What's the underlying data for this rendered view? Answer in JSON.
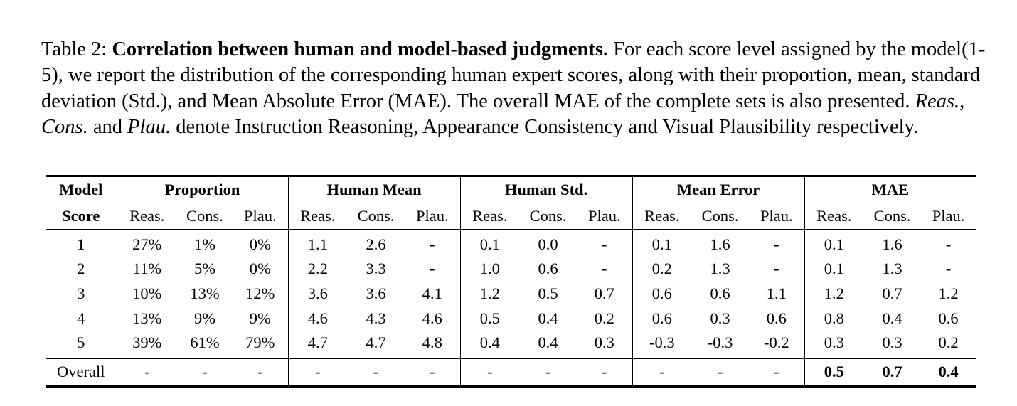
{
  "caption": {
    "label": "Table 2:",
    "title": "Correlation between human and model-based judgments.",
    "text1": "For each score level assigned by the model(1-5), we report the distribution of the corresponding human expert scores, along with their proportion, mean, standard deviation (Std.), and Mean Absolute Error (MAE). The overall MAE of the complete sets is also presented.",
    "reas": "Reas.",
    "comma": ",",
    "cons": "Cons.",
    "and": "and",
    "plau": "Plau.",
    "text2": "denote Instruction Reasoning, Appearance Consistency and Visual Plausibility respectively."
  },
  "table": {
    "header_model": "Model",
    "header_score": "Score",
    "groups": [
      "Proportion",
      "Human Mean",
      "Human Std.",
      "Mean Error",
      "MAE"
    ],
    "subcols": [
      "Reas.",
      "Cons.",
      "Plau."
    ],
    "rows": [
      {
        "score": "1",
        "cells": [
          "27%",
          "1%",
          "0%",
          "1.1",
          "2.6",
          "-",
          "0.1",
          "0.0",
          "-",
          "0.1",
          "1.6",
          "-",
          "0.1",
          "1.6",
          "-"
        ]
      },
      {
        "score": "2",
        "cells": [
          "11%",
          "5%",
          "0%",
          "2.2",
          "3.3",
          "-",
          "1.0",
          "0.6",
          "-",
          "0.2",
          "1.3",
          "-",
          "0.1",
          "1.3",
          "-"
        ]
      },
      {
        "score": "3",
        "cells": [
          "10%",
          "13%",
          "12%",
          "3.6",
          "3.6",
          "4.1",
          "1.2",
          "0.5",
          "0.7",
          "0.6",
          "0.6",
          "1.1",
          "1.2",
          "0.7",
          "1.2"
        ]
      },
      {
        "score": "4",
        "cells": [
          "13%",
          "9%",
          "9%",
          "4.6",
          "4.3",
          "4.6",
          "0.5",
          "0.4",
          "0.2",
          "0.6",
          "0.3",
          "0.6",
          "0.8",
          "0.4",
          "0.6"
        ]
      },
      {
        "score": "5",
        "cells": [
          "39%",
          "61%",
          "79%",
          "4.7",
          "4.7",
          "4.8",
          "0.4",
          "0.4",
          "0.3",
          "-0.3",
          "-0.3",
          "-0.2",
          "0.3",
          "0.3",
          "0.2"
        ]
      }
    ],
    "overall": {
      "label": "Overall",
      "cells": [
        "-",
        "-",
        "-",
        "-",
        "-",
        "-",
        "-",
        "-",
        "-",
        "-",
        "-",
        "-",
        "0.5",
        "0.7",
        "0.4"
      ]
    }
  }
}
